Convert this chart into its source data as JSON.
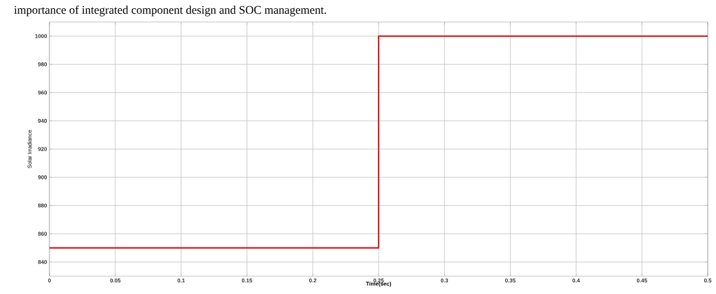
{
  "chart_data": {
    "type": "line",
    "annotations": [
      "importance of integrated component design and SOC management."
    ],
    "xlabel": "Time(sec)",
    "ylabel": "Solar Irradiance",
    "x": [
      0,
      0.25,
      0.25,
      0.5
    ],
    "series": [
      {
        "color": "#d42027",
        "values": [
          850,
          850,
          1000,
          1000
        ]
      }
    ],
    "xlim": [
      0,
      0.5
    ],
    "ylim": [
      830,
      1010
    ],
    "xticks": [
      0,
      0.05,
      0.1,
      0.15,
      0.2,
      0.25,
      0.3,
      0.35,
      0.4,
      0.45,
      0.5
    ],
    "yticks": [
      840,
      860,
      880,
      900,
      920,
      940,
      960,
      980,
      1000
    ],
    "grid": true,
    "marker": "none",
    "line_style": "solid"
  }
}
